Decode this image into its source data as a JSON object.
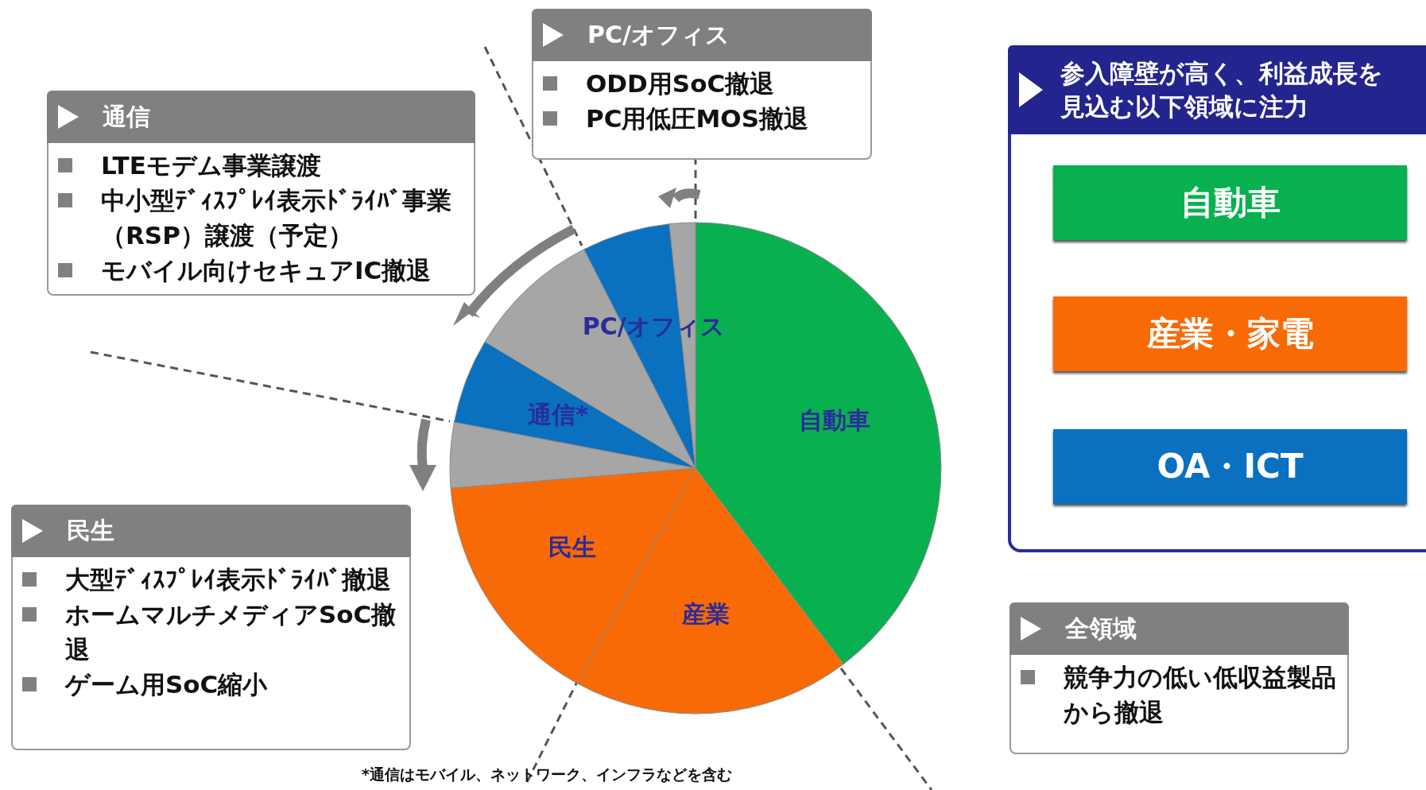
{
  "chart_data": {
    "type": "pie",
    "categories": [
      "自動車",
      "産業",
      "民生",
      null,
      "通信*",
      null,
      "PC/オフィス",
      null
    ],
    "values": [
      39.7,
      18.3,
      15.7,
      4.3,
      5.6,
      8.9,
      5.8,
      1.7
    ],
    "colors": [
      "#09b050",
      "#f86a06",
      "#f86a06",
      "#a6a6a6",
      "#0a70c0",
      "#a6a6a6",
      "#0a70c0",
      "#a6a6a6"
    ],
    "annotations": [
      "PC/オフィス",
      "ODD用SoC撤退",
      "PC用低圧MOS撤退",
      "通信",
      "LTEモデム事業譲渡",
      "中小型ﾃﾞｨｽﾌﾟﾚｲ表示ﾄﾞﾗｲﾊﾞ事業（RSP）譲渡（予定）",
      "モバイル向けセキュアIC撤退",
      "民生",
      "大型ﾃﾞｨｽﾌﾟﾚｲ表示ﾄﾞﾗｲﾊﾞ撤退",
      "ホームマルチメディアSoC撤退",
      "ゲーム用SoC縮小",
      "参入障壁が高く、利益成長を見込む以下領域に注力",
      "自動車",
      "産業・家電",
      "OA・ICT",
      "全領域",
      "競争力の低い低収益製品から撤退",
      "*通信はモバイル、ネットワーク、インフラなどを含む"
    ]
  }
}
